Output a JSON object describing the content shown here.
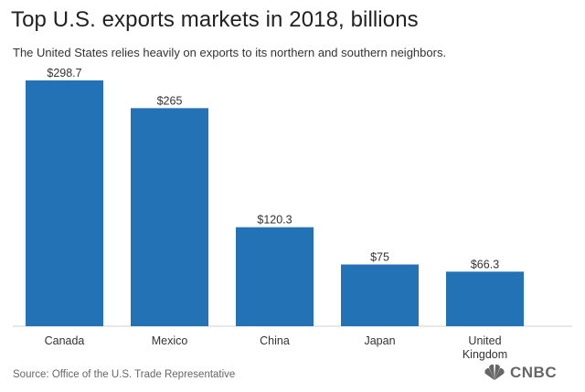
{
  "header": {
    "title": "Top U.S. exports markets in 2018, billions",
    "subtitle": "The United States relies heavily on exports to its northern and southern neighbors."
  },
  "footer": {
    "source": "Source: Office of the U.S. Trade Representative",
    "brand": "CNBC"
  },
  "colors": {
    "bar": "#2372b6"
  },
  "chart_data": {
    "type": "bar",
    "title": "Top U.S. exports markets in 2018, billions",
    "categories": [
      "Canada",
      "Mexico",
      "China",
      "Japan",
      "United Kingdom"
    ],
    "category_lines": [
      [
        "Canada"
      ],
      [
        "Mexico"
      ],
      [
        "China"
      ],
      [
        "Japan"
      ],
      [
        "United",
        "Kingdom"
      ]
    ],
    "values": [
      298.7,
      265,
      120.3,
      75,
      66.3
    ],
    "value_labels": [
      "$298.7",
      "$265",
      "$120.3",
      "$75",
      "$66.3"
    ],
    "xlabel": "",
    "ylabel": "",
    "ylim": [
      0,
      298.7
    ],
    "grid": false
  }
}
